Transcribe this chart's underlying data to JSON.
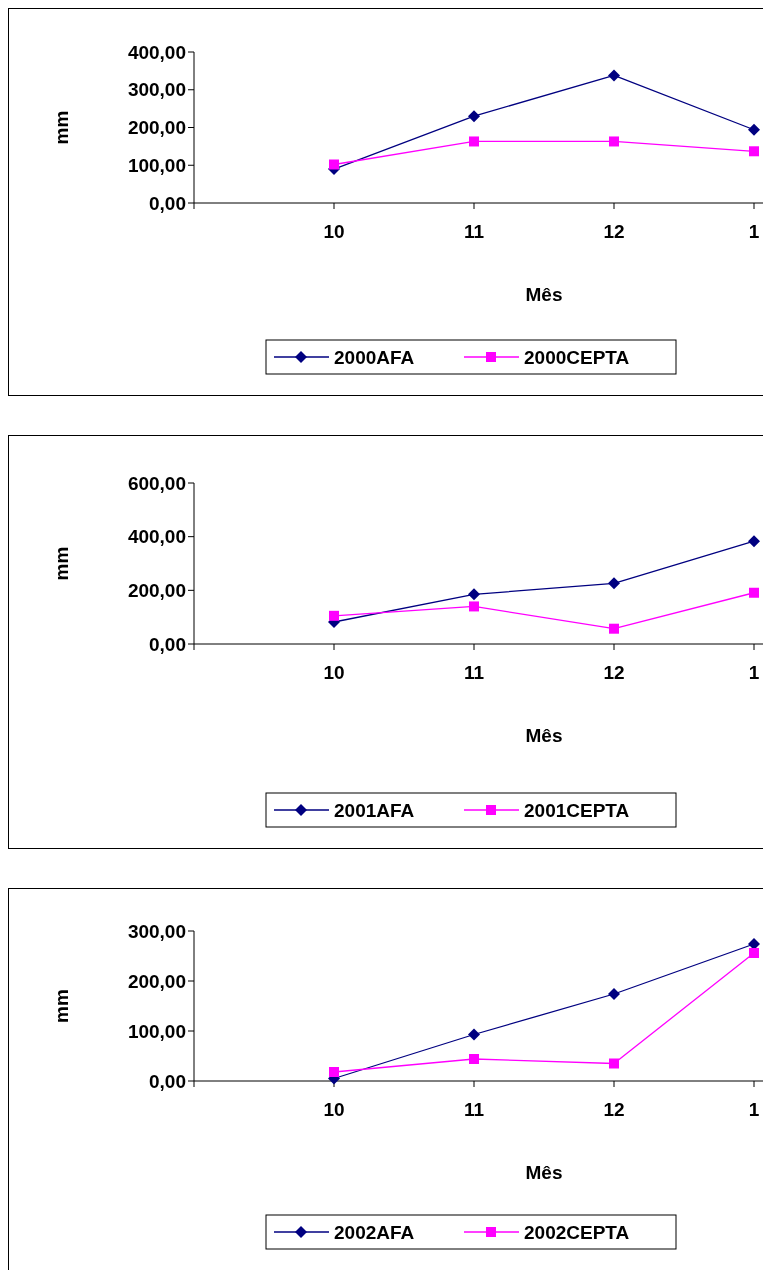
{
  "chart_data": [
    {
      "type": "line",
      "xlabel": "Mês",
      "ylabel": "mm",
      "categories": [
        "10",
        "11",
        "12",
        "1"
      ],
      "ylim": [
        0,
        400
      ],
      "yticks": [
        {
          "value": 0,
          "label": "0,00"
        },
        {
          "value": 100,
          "label": "100,00"
        },
        {
          "value": 200,
          "label": "200,00"
        },
        {
          "value": 300,
          "label": "300,00"
        },
        {
          "value": 400,
          "label": "400,00"
        }
      ],
      "grid": false,
      "legend": "bottom",
      "series": [
        {
          "name": "2000AFA",
          "color": "#000080",
          "marker": "diamond",
          "values": [
            90,
            230,
            338,
            194
          ]
        },
        {
          "name": "2000CEPTA",
          "color": "#ff00ff",
          "marker": "square",
          "values": [
            102,
            163,
            163,
            137
          ]
        }
      ]
    },
    {
      "type": "line",
      "xlabel": "Mês",
      "ylabel": "mm",
      "categories": [
        "10",
        "11",
        "12",
        "1"
      ],
      "ylim": [
        0,
        600
      ],
      "yticks": [
        {
          "value": 0,
          "label": "0,00"
        },
        {
          "value": 200,
          "label": "200,00"
        },
        {
          "value": 400,
          "label": "400,00"
        },
        {
          "value": 600,
          "label": "600,00"
        }
      ],
      "grid": false,
      "legend": "bottom",
      "series": [
        {
          "name": "2001AFA",
          "color": "#000080",
          "marker": "diamond",
          "values": [
            82,
            185,
            226,
            383
          ]
        },
        {
          "name": "2001CEPTA",
          "color": "#ff00ff",
          "marker": "square",
          "values": [
            105,
            140,
            57,
            191
          ]
        }
      ]
    },
    {
      "type": "line",
      "xlabel": "Mês",
      "ylabel": "mm",
      "categories": [
        "10",
        "11",
        "12",
        "1"
      ],
      "ylim": [
        0,
        300
      ],
      "yticks": [
        {
          "value": 0,
          "label": "0,00"
        },
        {
          "value": 100,
          "label": "100,00"
        },
        {
          "value": 200,
          "label": "200,00"
        },
        {
          "value": 300,
          "label": "300,00"
        }
      ],
      "grid": false,
      "legend": "bottom",
      "series": [
        {
          "name": "2002AFA",
          "color": "#000080",
          "marker": "diamond",
          "values": [
            5,
            93,
            174,
            274
          ]
        },
        {
          "name": "2002CEPTA",
          "color": "#ff00ff",
          "marker": "square",
          "values": [
            18,
            44,
            35,
            256
          ]
        }
      ]
    }
  ]
}
